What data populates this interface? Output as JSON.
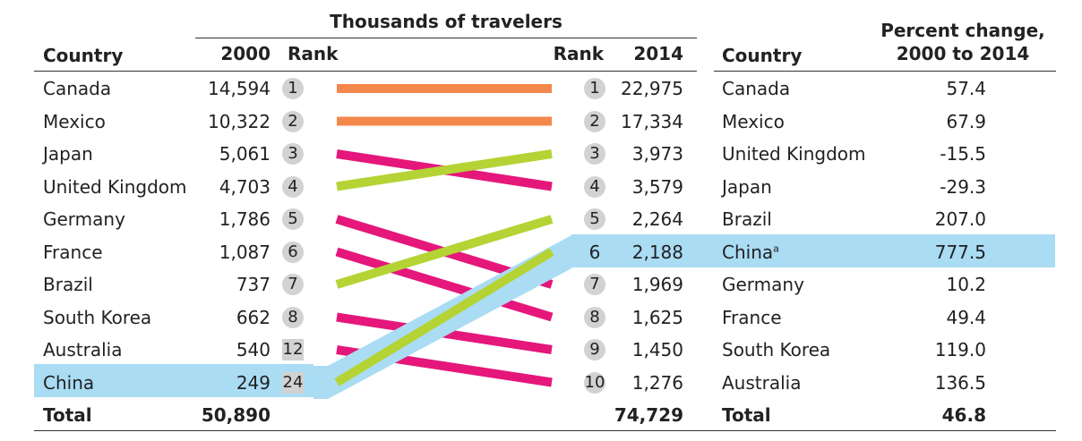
{
  "chart_data": {
    "type": "table",
    "header": {
      "group_title": "Thousands of travelers",
      "country": "Country",
      "year_2000": "2000",
      "rank": "Rank",
      "year_2014": "2014",
      "pct_change_line1": "Percent change,",
      "pct_change_line2": "2000 to 2014"
    },
    "left_rows": [
      {
        "country": "Canada",
        "travelers_2000": "14,594",
        "rank_2000": "1",
        "rank_2014": 1
      },
      {
        "country": "Mexico",
        "travelers_2000": "10,322",
        "rank_2000": "2",
        "rank_2014": 2
      },
      {
        "country": "Japan",
        "travelers_2000": "5,061",
        "rank_2000": "3",
        "rank_2014": 4
      },
      {
        "country": "United Kingdom",
        "travelers_2000": "4,703",
        "rank_2000": "4",
        "rank_2014": 3
      },
      {
        "country": "Germany",
        "travelers_2000": "1,786",
        "rank_2000": "5",
        "rank_2014": 7
      },
      {
        "country": "France",
        "travelers_2000": "1,087",
        "rank_2000": "6",
        "rank_2014": 8
      },
      {
        "country": "Brazil",
        "travelers_2000": "737",
        "rank_2000": "7",
        "rank_2014": 5
      },
      {
        "country": "South Korea",
        "travelers_2000": "662",
        "rank_2000": "8",
        "rank_2014": 9
      },
      {
        "country": "Australia",
        "travelers_2000": "540",
        "rank_2000": "12",
        "rank_2014": 10
      },
      {
        "country": "China",
        "travelers_2000": "249",
        "rank_2000": "24",
        "rank_2014": 6
      }
    ],
    "right_rows": [
      {
        "rank": "1",
        "travelers_2014": "22,975",
        "country": "Canada",
        "footnote": "",
        "pct_change": "57.4"
      },
      {
        "rank": "2",
        "travelers_2014": "17,334",
        "country": "Mexico",
        "footnote": "",
        "pct_change": "67.9"
      },
      {
        "rank": "3",
        "travelers_2014": "3,973",
        "country": "United Kingdom",
        "footnote": "",
        "pct_change": "-15.5"
      },
      {
        "rank": "4",
        "travelers_2014": "3,579",
        "country": "Japan",
        "footnote": "",
        "pct_change": "-29.3"
      },
      {
        "rank": "5",
        "travelers_2014": "2,264",
        "country": "Brazil",
        "footnote": "",
        "pct_change": "207.0"
      },
      {
        "rank": "6",
        "travelers_2014": "2,188",
        "country": "China",
        "footnote": "a",
        "pct_change": "777.5"
      },
      {
        "rank": "7",
        "travelers_2014": "1,969",
        "country": "Germany",
        "footnote": "",
        "pct_change": "10.2"
      },
      {
        "rank": "8",
        "travelers_2014": "1,625",
        "country": "France",
        "footnote": "",
        "pct_change": "49.4"
      },
      {
        "rank": "9",
        "travelers_2014": "1,450",
        "country": "South Korea",
        "footnote": "",
        "pct_change": "119.0"
      },
      {
        "rank": "10",
        "travelers_2014": "1,276",
        "country": "Australia",
        "footnote": "",
        "pct_change": "136.5"
      }
    ],
    "total": {
      "label": "Total",
      "travelers_2000": "50,890",
      "travelers_2014": "74,729",
      "pct_change": "46.8"
    },
    "colors": {
      "unchanged": "#f4874b",
      "fell": "#e5177b",
      "rose": "#b5d334",
      "highlight": "#aadcf4",
      "badge": "#d2d2d2"
    }
  }
}
